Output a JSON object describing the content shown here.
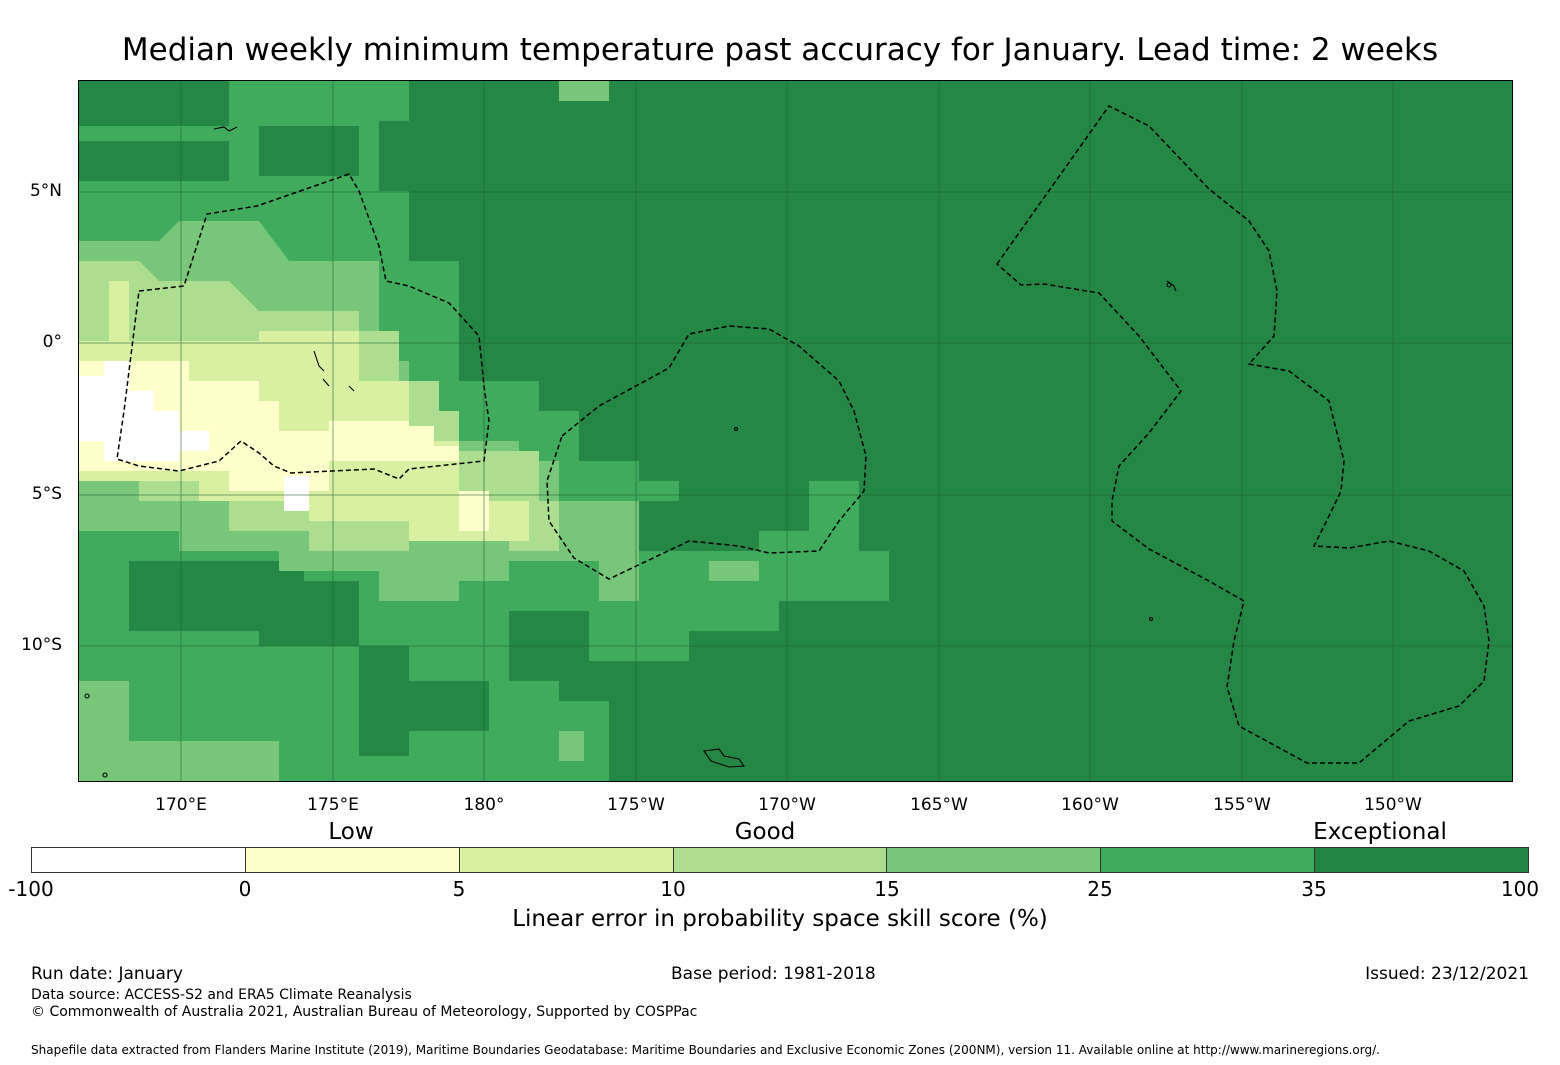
{
  "title": "Median weekly minimum temperature past accuracy for January. Lead time: 2 weeks",
  "map": {
    "latitude_labels": [
      "5°N",
      "0°",
      "5°S",
      "10°S"
    ],
    "longitude_labels": [
      "170°E",
      "175°E",
      "180°",
      "175°W",
      "170°W",
      "165°W",
      "160°W",
      "155°W",
      "150°W"
    ],
    "skill_category_colors": [
      "#ffffff",
      "#ffffcc",
      "#d9f0a3",
      "#addd8e",
      "#78c679",
      "#41ab5d",
      "#238443"
    ],
    "eez_boundary_style": "dashed",
    "coastline_color": "#000000"
  },
  "colorbar": {
    "words": [
      "Low",
      "Good",
      "Exceptional"
    ],
    "ticks": [
      "-100",
      "0",
      "5",
      "10",
      "15",
      "25",
      "35",
      "100"
    ],
    "colors": [
      "#ffffff",
      "#ffffcc",
      "#d9f0a3",
      "#addd8e",
      "#78c679",
      "#41ab5d",
      "#238443"
    ],
    "label": "Linear error in probability space skill score (%)"
  },
  "footer": {
    "run_date": "Run date: January",
    "base_period": "Base period: 1981-2018",
    "issued": "Issued: 23/12/2021",
    "data_source": "Data source: ACCESS-S2 and ERA5 Climate Reanalysis",
    "copyright": "© Commonwealth of Australia 2021, Australian Bureau of Meteorology, Supported by COSPPac",
    "shapefile_note": "Shapefile data extracted from Flanders Marine Institute (2019), Maritime Boundaries Geodatabase: Maritime Boundaries and Exclusive Economic Zones (200NM), version 11. Available online at http://www.marineregions.org/."
  }
}
